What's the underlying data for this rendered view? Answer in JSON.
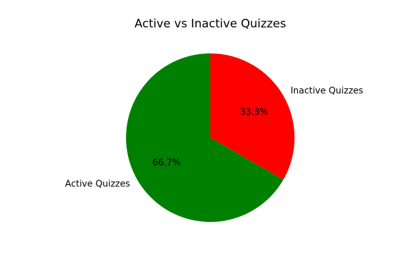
{
  "chart_data": {
    "type": "pie",
    "title": "Active vs Inactive Quizzes",
    "categories": [
      "Inactive Quizzes",
      "Active Quizzes"
    ],
    "values": [
      33.3,
      66.7
    ],
    "percent_labels": [
      "33.3%",
      "66.7%"
    ],
    "colors": [
      "#ff0000",
      "#008000"
    ],
    "start_angle_degrees": 90,
    "direction": "clockwise",
    "legend": "none"
  }
}
